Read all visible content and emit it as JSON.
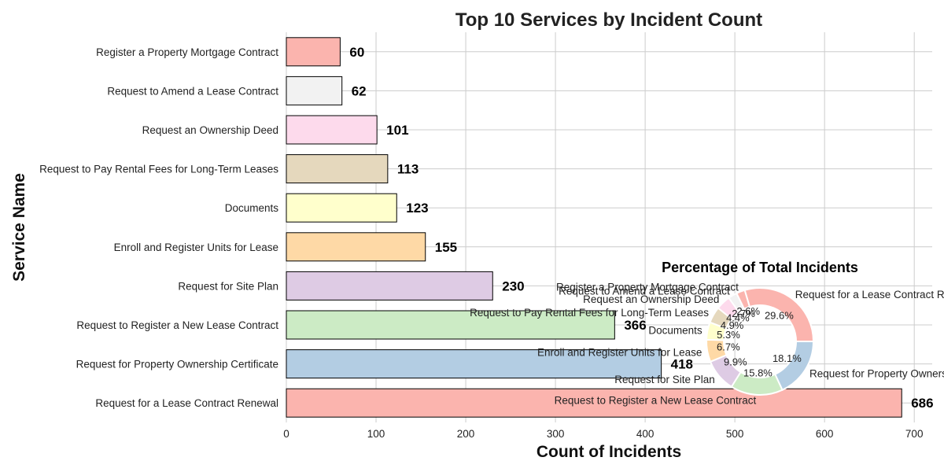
{
  "chart_data": [
    {
      "type": "bar",
      "orientation": "horizontal",
      "title": "Top 10 Services by Incident Count",
      "xlabel": "Count of Incidents",
      "ylabel": "Service Name",
      "xlim": [
        0,
        720
      ],
      "xticks": [
        0,
        100,
        200,
        300,
        400,
        500,
        600,
        700
      ],
      "grid": true,
      "categories": [
        "Request for a Lease Contract Renewal",
        "Request for Property Ownership Certificate",
        "Request to Register a New Lease Contract",
        "Request for Site Plan",
        "Enroll and Register Units for Lease",
        "Documents",
        "Request to Pay Rental Fees for Long-Term Leases",
        "Request an Ownership Deed",
        "Request to Amend a Lease Contract",
        "Register a Property Mortgage Contract"
      ],
      "values": [
        686,
        418,
        366,
        230,
        155,
        123,
        113,
        101,
        62,
        60
      ],
      "value_labels": [
        "686",
        "418",
        "366",
        "230",
        "155",
        "123",
        "113",
        "101",
        "62",
        "60"
      ],
      "colors": [
        "#fbb4ae",
        "#b3cde3",
        "#ccebc5",
        "#decbe4",
        "#fed9a6",
        "#ffffcc",
        "#e5d8bd",
        "#fddaec",
        "#f2f2f2",
        "#fbb4ae"
      ]
    },
    {
      "type": "pie",
      "donut": true,
      "title": "Percentage of Total Incidents",
      "categories": [
        "Request for a Lease Contract Renewal",
        "Register a Property Mortgage Contract",
        "Request to Amend a Lease Contract",
        "Request an Ownership Deed",
        "Request to Pay Rental Fees for Long-Term Leases",
        "Documents",
        "Enroll and Register Units for Lease",
        "Request for Site Plan",
        "Request to Register a New Lease Contract",
        "Request for Property Ownership Certificate"
      ],
      "values": [
        29.6,
        2.6,
        2.7,
        4.4,
        4.9,
        5.3,
        6.7,
        9.9,
        15.8,
        18.1
      ],
      "value_labels": [
        "29.6%",
        "2.6%",
        "2.7%",
        "4.4%",
        "4.9%",
        "5.3%",
        "6.7%",
        "9.9%",
        "15.8%",
        "18.1%"
      ],
      "colors": [
        "#fbb4ae",
        "#fbb4ae",
        "#f2f2f2",
        "#fddaec",
        "#e5d8bd",
        "#ffffcc",
        "#fed9a6",
        "#decbe4",
        "#ccebc5",
        "#b3cde3"
      ]
    }
  ]
}
